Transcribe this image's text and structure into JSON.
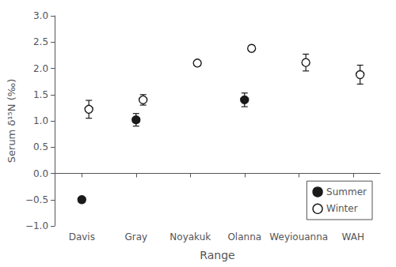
{
  "chart_data": {
    "type": "scatter",
    "categories": [
      "Davis",
      "Gray",
      "Noyakuk",
      "Olanna",
      "Weyiouanna",
      "WAH"
    ],
    "series": [
      {
        "name": "Summer",
        "color": "#1a1a1a",
        "marker": "circle",
        "values": [
          -0.5,
          1.02,
          null,
          1.4,
          null,
          null
        ],
        "errors": [
          0.03,
          0.12,
          null,
          0.13,
          null,
          null
        ]
      },
      {
        "name": "Winter",
        "color": "#1a1a1a",
        "marker": "open-circle",
        "values": [
          1.22,
          1.4,
          2.1,
          2.38,
          2.11,
          1.88
        ],
        "errors": [
          0.17,
          0.1,
          0.03,
          0.05,
          0.16,
          0.18
        ]
      }
    ],
    "xlabel": "Range",
    "ylabel": "Serum δ¹⁵N (‰)",
    "ylim": [
      -1.0,
      3.0
    ],
    "yticks": [
      {
        "value": -1.0,
        "label": "−1.0"
      },
      {
        "value": -0.5,
        "label": "−0.5"
      },
      {
        "value": 0.0,
        "label": "0.0"
      },
      0.5,
      {
        "value": 1.0,
        "label": "1.0"
      },
      1.5,
      {
        "value": 2.0,
        "label": "2.0"
      },
      2.5,
      {
        "value": 3.0,
        "label": "3.0"
      }
    ],
    "legend": "lower right",
    "grid": false
  }
}
